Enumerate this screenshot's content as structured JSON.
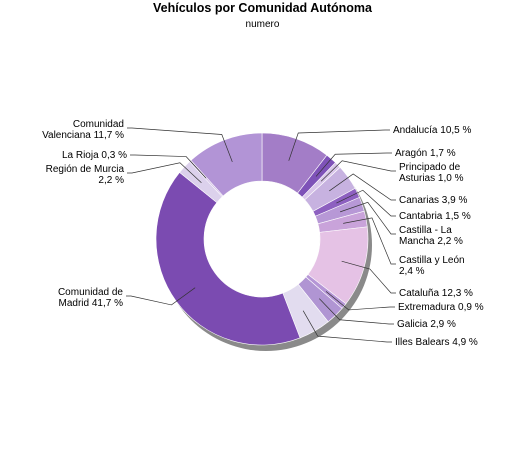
{
  "chart_data": {
    "type": "pie",
    "donut": true,
    "title": "Vehículos por Comunidad Autónoma",
    "subtitle": "numero",
    "slices": [
      {
        "label": [
          "Andalucía 10,5 %"
        ],
        "value": 10.5,
        "color": "#a37dc7"
      },
      {
        "label": [
          "Aragón 1,7 %"
        ],
        "value": 1.7,
        "color": "#7e52b8"
      },
      {
        "label": [
          "Principado de",
          "Asturias 1,0 %"
        ],
        "value": 1.0,
        "color": "#d9c6ea"
      },
      {
        "label": [
          "Canarias 3,9 %"
        ],
        "value": 3.9,
        "color": "#c7b2e0"
      },
      {
        "label": [
          "Cantabria 1,5 %"
        ],
        "value": 1.5,
        "color": "#8d60c0"
      },
      {
        "label": [
          "Castilla - La",
          "Mancha 2,2 %"
        ],
        "value": 2.2,
        "color": "#b798d6"
      },
      {
        "label": [
          "Castilla y León",
          "2,4 %"
        ],
        "value": 2.4,
        "color": "#c9a3da"
      },
      {
        "label": [
          "Cataluña 12,3 %"
        ],
        "value": 12.3,
        "color": "#e5c2e5"
      },
      {
        "label": [
          "Extremadura 0,9 %"
        ],
        "value": 0.9,
        "color": "#b596d6"
      },
      {
        "label": [
          "Galicia 2,9 %"
        ],
        "value": 2.9,
        "color": "#b095d3"
      },
      {
        "label": [
          "Illes Balears 4,9 %"
        ],
        "value": 4.9,
        "color": "#e2dcef"
      },
      {
        "label": [
          "Comunidad de",
          "Madrid 41,7 %"
        ],
        "value": 41.7,
        "color": "#7b4bb1"
      },
      {
        "label": [
          "Región de Murcia",
          "2,2 %"
        ],
        "value": 2.2,
        "color": "#dcd1ec"
      },
      {
        "label": [
          "La Rioja 0,3 %"
        ],
        "value": 0.3,
        "color": "#cbb5e2"
      },
      {
        "label": [
          "Comunidad",
          "Valenciana 11,7 %"
        ],
        "value": 11.7,
        "color": "#b294d6"
      }
    ]
  }
}
